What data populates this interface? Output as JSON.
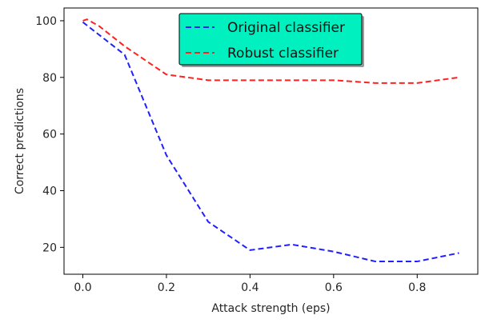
{
  "chart_data": {
    "type": "line",
    "title": "",
    "xlabel": "Attack strength (eps)",
    "ylabel": "Correct predictions",
    "xlim": [
      -0.045,
      0.945
    ],
    "ylim": [
      10.5,
      104.5
    ],
    "x_ticks": [
      0.0,
      0.2,
      0.4,
      0.6,
      0.8
    ],
    "x_tick_labels": [
      "0.0",
      "0.2",
      "0.4",
      "0.6",
      "0.8"
    ],
    "y_ticks": [
      20,
      40,
      60,
      80,
      100
    ],
    "y_tick_labels": [
      "20",
      "40",
      "60",
      "80",
      "100"
    ],
    "grid": false,
    "legend": {
      "placement": "upper-center",
      "background": "#00f0c0",
      "border": "#000000"
    },
    "line_style": "dashed",
    "series": [
      {
        "name": "Original classifier",
        "color": "#2020ff",
        "x": [
          0.0,
          0.1,
          0.2,
          0.3,
          0.4,
          0.5,
          0.6,
          0.7,
          0.8,
          0.9
        ],
        "y": [
          99.5,
          88,
          52.5,
          29,
          19,
          21,
          18.5,
          15,
          15,
          18
        ]
      },
      {
        "name": "Robust classifier",
        "color": "#ff2020",
        "x": [
          0.0,
          0.01,
          0.04,
          0.1,
          0.2,
          0.3,
          0.4,
          0.5,
          0.6,
          0.7,
          0.8,
          0.9
        ],
        "y": [
          100,
          100.5,
          98,
          91,
          81,
          79,
          79,
          79,
          79,
          78,
          78,
          80
        ]
      }
    ]
  }
}
